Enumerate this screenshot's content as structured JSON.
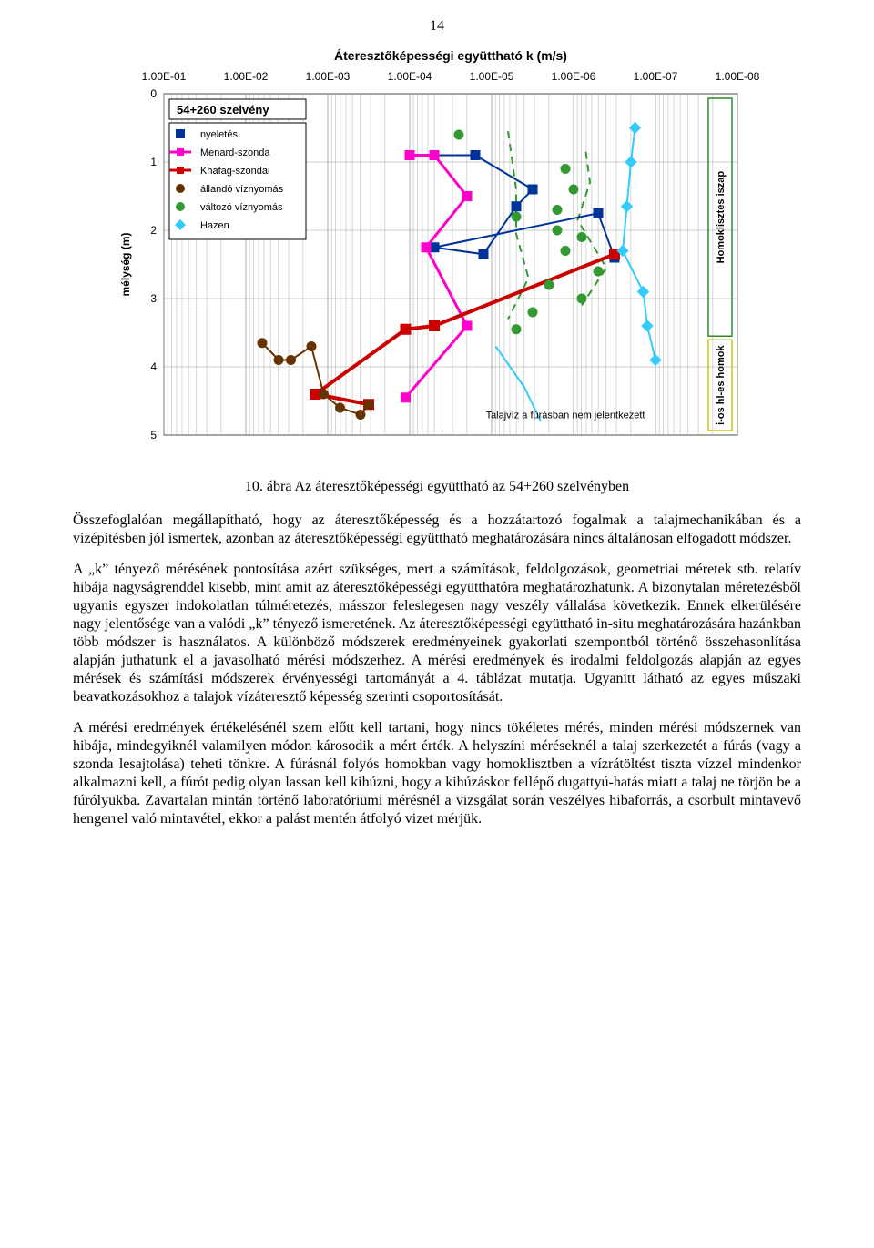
{
  "page_number": "14",
  "chart": {
    "title": "Áteresztőképességi együttható k (m/s)",
    "title_fontsize": 14,
    "title_weight": "bold",
    "x_axis_labels": [
      "1.00E-01",
      "1.00E-02",
      "1.00E-03",
      "1.00E-04",
      "1.00E-05",
      "1.00E-06",
      "1.00E-07",
      "1.00E-08"
    ],
    "y_axis_label": "mélység (m)",
    "y_ticks": [
      "0",
      "1",
      "2",
      "3",
      "4",
      "5"
    ],
    "axis_fontsize": 12,
    "legend_title": "54+260 szelvény",
    "legend_items": [
      {
        "label": "nyeletés",
        "marker": "sq",
        "color": "#003399"
      },
      {
        "label": "Menard-szonda",
        "marker": "line-sq",
        "color": "#ff00cc"
      },
      {
        "label": "Khafag-szondai",
        "marker": "line-sq",
        "color": "#cc0000"
      },
      {
        "label": "állandó víznyomás",
        "marker": "circ",
        "color": "#663300"
      },
      {
        "label": "változó víznyomás",
        "marker": "circ",
        "color": "#339933"
      },
      {
        "label": "Hazen",
        "marker": "diam",
        "color": "#33ccff"
      }
    ],
    "right_labels": {
      "top": "Homoklisztes iszap",
      "bottom": "i-os hl-es homok"
    },
    "note_text": "Talajvíz a fúrásban nem jelentkezett",
    "background": "#ffffff",
    "grid_color": "#9a9a9a",
    "border_color": "#000000",
    "plot": {
      "xmin_exp": 1,
      "xmax_exp": 8,
      "ymin": 0,
      "ymax": 5,
      "nyeletes": [
        [
          4.0,
          0.9
        ],
        [
          4.3,
          0.9
        ],
        [
          4.8,
          0.9
        ],
        [
          5.5,
          1.4
        ],
        [
          5.3,
          1.65
        ],
        [
          4.9,
          2.35
        ],
        [
          4.3,
          2.25
        ],
        [
          6.3,
          1.75
        ],
        [
          6.5,
          2.4
        ]
      ],
      "menard": [
        [
          4.0,
          0.9
        ],
        [
          4.3,
          0.9
        ],
        [
          4.7,
          1.5
        ],
        [
          4.2,
          2.25
        ],
        [
          4.7,
          3.4
        ],
        [
          3.95,
          4.45
        ]
      ],
      "khafag": [
        [
          3.5,
          4.55
        ],
        [
          2.85,
          4.4
        ],
        [
          3.95,
          3.45
        ],
        [
          4.3,
          3.4
        ],
        [
          6.5,
          2.35
        ]
      ],
      "allando": [
        [
          2.2,
          3.65
        ],
        [
          2.4,
          3.9
        ],
        [
          2.55,
          3.9
        ],
        [
          2.8,
          3.7
        ],
        [
          2.95,
          4.4
        ],
        [
          3.15,
          4.6
        ],
        [
          3.4,
          4.7
        ],
        [
          3.5,
          4.55
        ]
      ],
      "valtozo": [
        [
          4.6,
          0.6
        ],
        [
          5.9,
          1.1
        ],
        [
          6.0,
          1.4
        ],
        [
          5.8,
          1.7
        ],
        [
          5.3,
          1.8
        ],
        [
          5.8,
          2.0
        ],
        [
          6.1,
          2.1
        ],
        [
          5.9,
          2.3
        ],
        [
          6.3,
          2.6
        ],
        [
          5.7,
          2.8
        ],
        [
          6.1,
          3.0
        ],
        [
          5.5,
          3.2
        ],
        [
          5.3,
          3.45
        ]
      ],
      "hazen": [
        [
          6.75,
          0.5
        ],
        [
          6.7,
          1.0
        ],
        [
          6.65,
          1.65
        ],
        [
          6.6,
          2.3
        ],
        [
          6.85,
          2.9
        ],
        [
          6.9,
          3.4
        ],
        [
          7.0,
          3.9
        ]
      ],
      "green_dash1": [
        [
          5.2,
          0.55
        ],
        [
          5.3,
          1.4
        ],
        [
          5.3,
          2.05
        ],
        [
          5.45,
          2.7
        ],
        [
          5.2,
          3.3
        ]
      ],
      "green_dash2": [
        [
          6.15,
          0.85
        ],
        [
          6.2,
          1.3
        ],
        [
          6.05,
          1.85
        ],
        [
          6.4,
          2.55
        ],
        [
          6.1,
          3.1
        ]
      ],
      "cyan_line": [
        [
          5.05,
          3.7
        ],
        [
          5.4,
          4.3
        ],
        [
          5.6,
          4.8
        ]
      ]
    }
  },
  "caption": "10. ábra Az áteresztőképességi együttható az 54+260 szelvényben",
  "paragraphs": [
    "Összefoglalóan megállapítható, hogy az áteresztőképesség és a hozzátartozó fogalmak a talajmechanikában és a vízépítésben jól ismertek, azonban az áteresztőképességi együttható meghatározására nincs általánosan elfogadott módszer.",
    "A „k” tényező mérésének pontosítása azért szükséges, mert a számítások, feldolgozások, geometriai méretek stb. relatív hibája nagyságrenddel kisebb, mint amit az áteresztőképességi együtthatóra meghatározhatunk. A bizonytalan méretezésből ugyanis egyszer indokolatlan túlméretezés, másszor feleslegesen nagy veszély vállalása következik. Ennek elkerülésére nagy jelentősége van a valódi „k” tényező ismeretének. Az áteresztőképességi együttható in-situ meghatározására hazánkban több módszer is használatos. A különböző módszerek eredményeinek gyakorlati szempontból történő összehasonlítása alapján juthatunk el a javasolható mérési módszerhez. A mérési eredmények és irodalmi feldolgozás alapján az egyes mérések és számítási módszerek érvényességi tartományát a 4. táblázat mutatja. Ugyanitt látható az egyes műszaki beavatkozásokhoz a talajok vízáteresztő képesség szerinti csoportosítását.",
    "A mérési eredmények értékelésénél szem előtt kell tartani, hogy nincs tökéletes mérés, minden mérési módszernek van hibája, mindegyiknél valamilyen módon károsodik a mért érték. A helyszíni méréseknél a talaj szerkezetét a fúrás (vagy a szonda lesajtolása) teheti tönkre. A fúrásnál folyós homokban vagy homoklisztben a vízrátöltést tiszta vízzel mindenkor alkalmazni kell, a fúrót pedig olyan lassan kell kihúzni, hogy a kihúzáskor fellépő dugattyú-hatás miatt a talaj ne törjön be a fúrólyukba. Zavartalan mintán történő laboratóriumi mérésnél a vizsgálat során veszélyes hibaforrás, a csorbult mintavevő hengerrel való mintavétel, ekkor a palást mentén átfolyó vizet mérjük."
  ]
}
